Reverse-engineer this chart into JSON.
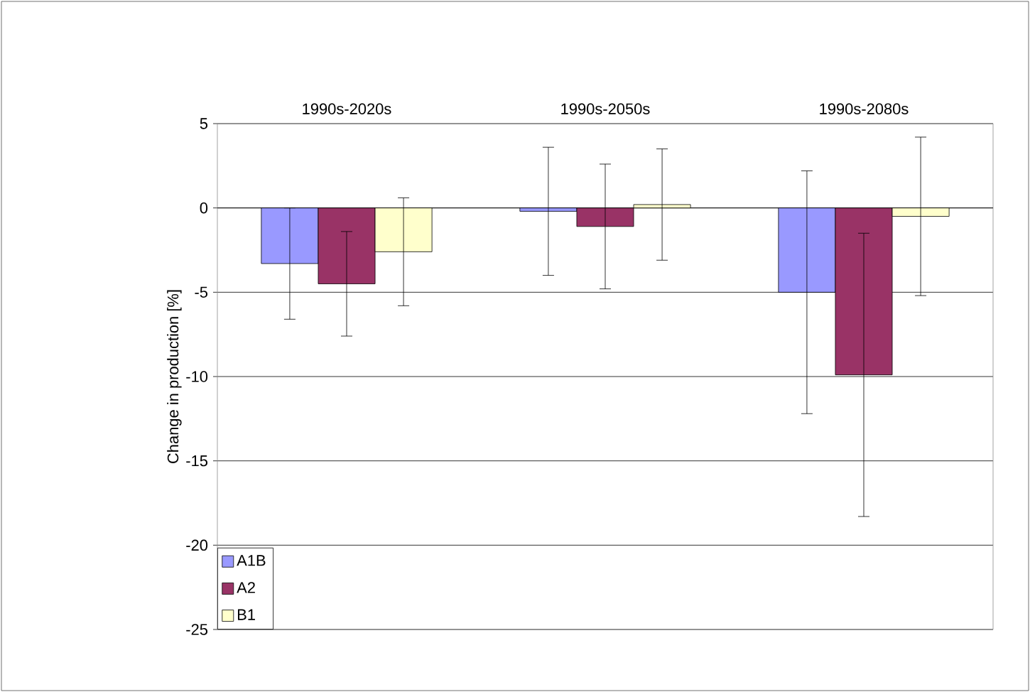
{
  "chart_data": {
    "type": "bar",
    "categories": [
      "1990s-2020s",
      "1990s-2050s",
      "1990s-2080s"
    ],
    "ylabel": "Change in production [%]",
    "ylim": [
      -25,
      5
    ],
    "yticks": [
      -25,
      -20,
      -15,
      -10,
      -5,
      0,
      5
    ],
    "grid": "y",
    "legend": "bottom left",
    "series": [
      {
        "name": "A1B",
        "color": "#9999ff",
        "values": [
          -3.3,
          -0.2,
          -5.0
        ],
        "errors": [
          3.3,
          3.8,
          7.2
        ]
      },
      {
        "name": "A2",
        "color": "#993366",
        "values": [
          -4.5,
          -1.1,
          -9.9
        ],
        "errors": [
          3.1,
          3.7,
          8.4
        ]
      },
      {
        "name": "B1",
        "color": "#ffffcc",
        "values": [
          -2.6,
          0.2,
          -0.5
        ],
        "errors": [
          3.2,
          3.3,
          4.7
        ]
      }
    ]
  }
}
